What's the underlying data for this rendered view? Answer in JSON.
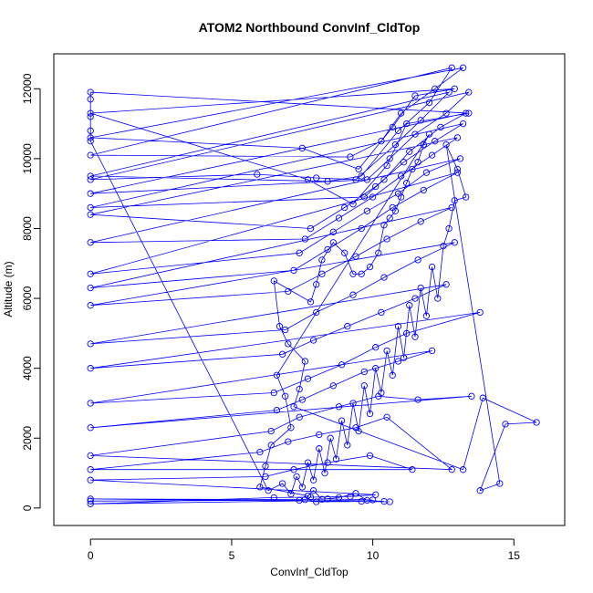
{
  "chart_data": {
    "type": "scatter",
    "title": "ATOM2 Northbound ConvInf_CldTop",
    "xlabel": "ConvInf_CldTop",
    "ylabel": "Altitude (m)",
    "xlim": [
      -1.3,
      16.8
    ],
    "ylim": [
      -500,
      13000
    ],
    "x_ticks": [
      0,
      5,
      10,
      15
    ],
    "y_ticks": [
      0,
      2000,
      4000,
      6000,
      8000,
      10000,
      12000
    ],
    "color": "#0000ff",
    "marker": "open-circle",
    "series": [
      {
        "values": [
          [
            0,
            200
          ],
          [
            7.4,
            220
          ],
          [
            8.0,
            180
          ],
          [
            9.6,
            190
          ],
          [
            10.6,
            180
          ],
          [
            0,
            260
          ],
          [
            7.6,
            240
          ],
          [
            8.4,
            260
          ],
          [
            10.0,
            230
          ],
          [
            0,
            120
          ],
          [
            6.5,
            300
          ],
          [
            7.8,
            310
          ],
          [
            9.2,
            330
          ],
          [
            10.1,
            380
          ],
          [
            0,
            800
          ],
          [
            6.2,
            900
          ],
          [
            7.2,
            1100
          ],
          [
            8.4,
            1300
          ],
          [
            9.9,
            1500
          ],
          [
            11.4,
            1100
          ],
          [
            0,
            1100
          ],
          [
            6.0,
            1600
          ],
          [
            7.0,
            1900
          ],
          [
            8.1,
            2100
          ],
          [
            9.4,
            2300
          ],
          [
            10.5,
            2600
          ],
          [
            12.8,
            1100
          ],
          [
            0,
            1500
          ],
          [
            6.4,
            2200
          ],
          [
            7.4,
            2600
          ],
          [
            8.8,
            2900
          ],
          [
            10.2,
            3200
          ],
          [
            11.6,
            3100
          ],
          [
            13.5,
            3200
          ],
          [
            0,
            2300
          ],
          [
            6.6,
            2800
          ],
          [
            7.5,
            3100
          ],
          [
            8.6,
            3500
          ],
          [
            9.7,
            3900
          ],
          [
            10.9,
            4200
          ],
          [
            12.1,
            4500
          ],
          [
            0,
            3000
          ],
          [
            6.5,
            3300
          ],
          [
            7.7,
            3700
          ],
          [
            8.9,
            4100
          ],
          [
            10.1,
            4600
          ],
          [
            11.2,
            5000
          ],
          [
            13.8,
            5600
          ],
          [
            0,
            4000
          ],
          [
            6.8,
            4400
          ],
          [
            7.9,
            4800
          ],
          [
            9.1,
            5200
          ],
          [
            10.3,
            5600
          ],
          [
            11.5,
            6000
          ],
          [
            12.6,
            6400
          ],
          [
            0,
            4700
          ],
          [
            6.9,
            5100
          ],
          [
            8.0,
            5600
          ],
          [
            9.3,
            6100
          ],
          [
            10.4,
            6600
          ],
          [
            11.6,
            7100
          ],
          [
            12.9,
            7600
          ],
          [
            0,
            5800
          ],
          [
            7.0,
            6200
          ],
          [
            8.2,
            6700
          ],
          [
            9.4,
            7200
          ],
          [
            10.5,
            7700
          ],
          [
            11.7,
            8200
          ],
          [
            12.8,
            8600
          ],
          [
            0,
            6300
          ],
          [
            7.2,
            6800
          ],
          [
            8.4,
            7400
          ],
          [
            9.6,
            8000
          ],
          [
            10.7,
            8600
          ],
          [
            11.8,
            9100
          ],
          [
            13.0,
            9600
          ],
          [
            0,
            6700
          ],
          [
            7.4,
            7300
          ],
          [
            8.6,
            7900
          ],
          [
            9.8,
            8500
          ],
          [
            10.9,
            9000
          ],
          [
            11.9,
            9600
          ],
          [
            13.1,
            10000
          ],
          [
            0,
            7600
          ],
          [
            7.6,
            7700
          ],
          [
            8.8,
            8300
          ],
          [
            10.0,
            8900
          ],
          [
            11.0,
            9500
          ],
          [
            12.1,
            10100
          ],
          [
            13.0,
            10600
          ],
          [
            0,
            8400
          ],
          [
            7.8,
            8000
          ],
          [
            9.0,
            8600
          ],
          [
            10.1,
            9200
          ],
          [
            11.1,
            9900
          ],
          [
            12.2,
            10500
          ],
          [
            13.2,
            11000
          ],
          [
            0,
            8600
          ],
          [
            9.7,
            8900
          ],
          [
            10.4,
            9400
          ],
          [
            11.3,
            10200
          ],
          [
            12.4,
            10900
          ],
          [
            13.3,
            11300
          ],
          [
            0,
            9000
          ],
          [
            9.8,
            9400
          ],
          [
            10.6,
            10000
          ],
          [
            11.5,
            10700
          ],
          [
            12.6,
            11300
          ],
          [
            13.4,
            11900
          ],
          [
            0,
            9400
          ],
          [
            5.9,
            9550
          ],
          [
            8.0,
            9450
          ],
          [
            9.4,
            9400
          ],
          [
            10.8,
            10400
          ],
          [
            11.7,
            11100
          ],
          [
            12.7,
            11900
          ],
          [
            0,
            9500
          ],
          [
            8.4,
            9350
          ],
          [
            9.6,
            9500
          ],
          [
            10.9,
            10800
          ],
          [
            12.0,
            11600
          ],
          [
            12.8,
            12600
          ],
          [
            0,
            10100
          ],
          [
            9.2,
            10050
          ],
          [
            10.3,
            10500
          ],
          [
            11.0,
            11300
          ],
          [
            12.2,
            12000
          ],
          [
            13.2,
            12600
          ],
          [
            0,
            10600
          ],
          [
            7.5,
            10300
          ],
          [
            9.5,
            9700
          ],
          [
            10.7,
            10900
          ],
          [
            11.5,
            11800
          ],
          [
            12.9,
            12000
          ],
          [
            0,
            11300
          ],
          [
            7.7,
            9400
          ],
          [
            9.3,
            8700
          ],
          [
            10.5,
            9800
          ],
          [
            11.2,
            11000
          ],
          [
            13.4,
            11300
          ],
          [
            0,
            11900
          ],
          [
            0,
            11700
          ],
          [
            0,
            11200
          ],
          [
            0,
            10800
          ],
          [
            0,
            10500
          ],
          [
            6.3,
            500
          ],
          [
            6.8,
            700
          ],
          [
            7.1,
            400
          ],
          [
            7.3,
            900
          ],
          [
            7.5,
            600
          ],
          [
            7.7,
            1300
          ],
          [
            7.9,
            800
          ],
          [
            8.1,
            1700
          ],
          [
            8.3,
            1000
          ],
          [
            8.5,
            2000
          ],
          [
            8.7,
            1400
          ],
          [
            8.9,
            2500
          ],
          [
            9.1,
            1800
          ],
          [
            9.3,
            3000
          ],
          [
            9.5,
            2200
          ],
          [
            9.7,
            3500
          ],
          [
            9.9,
            2700
          ],
          [
            10.1,
            4000
          ],
          [
            10.3,
            3300
          ],
          [
            10.5,
            4500
          ],
          [
            10.7,
            3800
          ],
          [
            10.9,
            5200
          ],
          [
            11.1,
            4300
          ],
          [
            11.3,
            5800
          ],
          [
            11.5,
            4900
          ],
          [
            11.7,
            6300
          ],
          [
            11.9,
            5500
          ],
          [
            12.1,
            6900
          ],
          [
            12.3,
            6000
          ],
          [
            12.5,
            7500
          ],
          [
            12.7,
            8000
          ],
          [
            12.9,
            8800
          ],
          [
            13.3,
            8900
          ],
          [
            13.0,
            9700
          ],
          [
            12.6,
            10400
          ],
          [
            14.5,
            700
          ],
          [
            13.8,
            500
          ],
          [
            14.7,
            2400
          ],
          [
            15.8,
            2450
          ],
          [
            13.9,
            3150
          ],
          [
            13.2,
            1100
          ],
          [
            7.2,
            2900
          ],
          [
            7.4,
            3400
          ],
          [
            7.6,
            4200
          ],
          [
            7.0,
            4700
          ],
          [
            6.7,
            5200
          ],
          [
            6.5,
            6500
          ],
          [
            7.8,
            5900
          ],
          [
            8.0,
            6400
          ],
          [
            8.2,
            7100
          ],
          [
            8.6,
            7600
          ],
          [
            9.0,
            7300
          ],
          [
            9.3,
            6700
          ],
          [
            9.6,
            6700
          ],
          [
            9.9,
            6900
          ],
          [
            10.2,
            7300
          ],
          [
            10.4,
            8100
          ],
          [
            10.6,
            8300
          ],
          [
            10.8,
            8500
          ],
          [
            11.0,
            8900
          ],
          [
            11.2,
            9300
          ],
          [
            11.4,
            9700
          ],
          [
            11.6,
            9900
          ],
          [
            11.8,
            10400
          ],
          [
            12.0,
            10700
          ],
          [
            6.6,
            3800
          ],
          [
            6.9,
            3200
          ],
          [
            7.1,
            2300
          ],
          [
            6.4,
            1800
          ],
          [
            6.2,
            1200
          ],
          [
            6.0,
            600
          ],
          [
            7.7,
            350
          ],
          [
            7.9,
            500
          ],
          [
            8.2,
            250
          ],
          [
            8.8,
            300
          ],
          [
            9.4,
            420
          ],
          [
            9.8,
            220
          ],
          [
            10.4,
            190
          ]
        ]
      }
    ]
  }
}
